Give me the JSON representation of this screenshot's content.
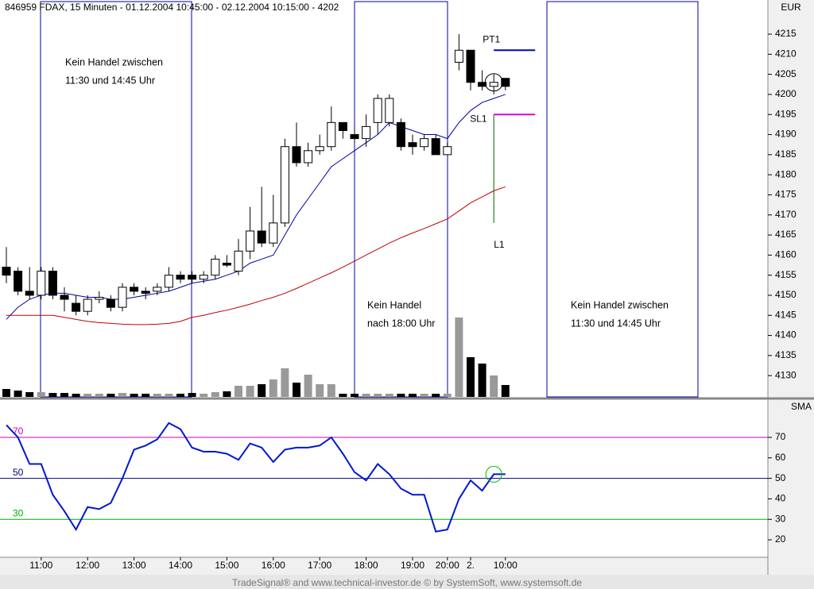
{
  "header": "846959  FDAX, 15 Minuten - 01.12.2004 10:45:00 - 02.12.2004 10:15:00 - 4202",
  "footer": "TradeSignal® and www.technical-investor.de © by SystemSoft, www.systemsoft.de",
  "chart_data": [
    {
      "type": "candlestick",
      "unit": "EUR",
      "categories": [
        null,
        null,
        null,
        "11:00",
        null,
        null,
        null,
        "12:00",
        null,
        null,
        null,
        "13:00",
        null,
        null,
        null,
        "14:00",
        null,
        null,
        null,
        "15:00",
        null,
        null,
        null,
        "16:00",
        null,
        null,
        null,
        "17:00",
        null,
        null,
        null,
        "18:00",
        null,
        null,
        null,
        "19:00",
        null,
        null,
        "20:00",
        null,
        "2.",
        null,
        null,
        "10:00"
      ],
      "open": [
        4157,
        4156,
        4151,
        4150,
        4156,
        4150,
        4148,
        4146,
        4149,
        4149,
        4147,
        4152,
        4151,
        4151,
        4152,
        4155,
        4155,
        4154,
        4155,
        4158,
        4156,
        4161,
        4166,
        4163,
        4168,
        4187,
        4183,
        4186,
        4187,
        4193,
        4190,
        4189,
        4193,
        4193,
        4193,
        4188,
        4187,
        4189,
        4185,
        4208,
        4211,
        4203,
        4202,
        4204
      ],
      "high": [
        4162,
        4157,
        4157,
        4157,
        4157,
        4152,
        4150,
        4150,
        4151,
        4150,
        4153,
        4153,
        4152,
        4153,
        4157,
        4156,
        4156,
        4156,
        4160,
        4160,
        4164,
        4172,
        4177,
        4175,
        4189,
        4193,
        4188,
        4190,
        4197,
        4193,
        4192,
        4195,
        4200,
        4200,
        4194,
        4190,
        4190,
        4190,
        4188,
        4215,
        4211,
        4206,
        4205,
        4204
      ],
      "low": [
        4153,
        4150,
        4149,
        4149,
        4149,
        4146,
        4145,
        4145,
        4148,
        4146,
        4146,
        4150,
        4149,
        4150,
        4151,
        4153,
        4153,
        4153,
        4154,
        4157,
        4155,
        4159,
        4162,
        4162,
        4167,
        4182,
        4182,
        4185,
        4186,
        4189,
        4188,
        4187,
        4190,
        4192,
        4186,
        4185,
        4186,
        4185,
        4185,
        4206,
        4201,
        4201,
        4200,
        4201
      ],
      "close": [
        4155,
        4151,
        4150,
        4156,
        4150,
        4149,
        4146,
        4149,
        4149.5,
        4147,
        4152,
        4151,
        4150.5,
        4152,
        4155,
        4154,
        4154,
        4155,
        4159,
        4157.5,
        4161,
        4166,
        4163,
        4168,
        4187,
        4183,
        4186,
        4187,
        4193,
        4191,
        4189,
        4192,
        4199,
        4199,
        4187,
        4187,
        4189,
        4185,
        4187,
        4211,
        4203,
        4202,
        4203,
        4202
      ],
      "volume": [
        10,
        8,
        6,
        6,
        5,
        5,
        4,
        4,
        4,
        4,
        5,
        4,
        4,
        4,
        4,
        4,
        5,
        4,
        6,
        7,
        14,
        14,
        16,
        22,
        36,
        18,
        28,
        16,
        16,
        4,
        4,
        4,
        4,
        4,
        4,
        4,
        4,
        4,
        4,
        100,
        50,
        42,
        27,
        15
      ],
      "series": [
        {
          "color": "#0000a0",
          "values": [
            4144,
            4147,
            4149,
            4150,
            4150.5,
            4150.5,
            4150,
            4149.5,
            4149.5,
            4149,
            4149,
            4149.5,
            4150,
            4150.5,
            4151,
            4152,
            4153,
            4153.5,
            4154,
            4155,
            4156,
            4158,
            4159,
            4160,
            4165,
            4170,
            4174,
            4178,
            4182,
            4184,
            4186,
            4188,
            4190,
            4193,
            4192,
            4191,
            4190,
            4190,
            4189,
            4193,
            4196,
            4198,
            4199,
            4200
          ]
        },
        {
          "color": "#c00000",
          "values": [
            4145,
            4145,
            4145,
            4145,
            4145,
            4144.5,
            4144,
            4143.5,
            4143.2,
            4143,
            4142.8,
            4142.7,
            4142.7,
            4142.8,
            4143,
            4143.5,
            4144.5,
            4145,
            4145.7,
            4146.3,
            4147,
            4147.8,
            4148.7,
            4149.5,
            4150.5,
            4151.7,
            4153,
            4154.3,
            4155.6,
            4157,
            4158.5,
            4160,
            4161.5,
            4163,
            4164.3,
            4165.5,
            4166.6,
            4167.8,
            4169,
            4171,
            4173,
            4174.5,
            4176,
            4177
          ]
        }
      ],
      "levels": [
        {
          "name": "PT1",
          "value": 4211,
          "color": "#0000c0"
        },
        {
          "name": "SL1",
          "value": 4195,
          "color": "#e000e0"
        },
        {
          "name": "L1",
          "value": 4168,
          "color": "#006000"
        }
      ],
      "annotations": [
        [
          "Kein Handel zwischen",
          "11:30 und 14:45 Uhr"
        ],
        [
          "Kein Handel",
          "nach 18:00 Uhr"
        ],
        [
          "Kein Handel zwischen",
          "11:30 und 14:45 Uhr"
        ]
      ],
      "ylim": [
        4124.7,
        4223.5
      ],
      "yticks": [
        4130,
        4135,
        4140,
        4145,
        4150,
        4155,
        4160,
        4165,
        4170,
        4175,
        4180,
        4185,
        4190,
        4195,
        4200,
        4205,
        4210,
        4215
      ]
    },
    {
      "type": "line",
      "title": "SMA",
      "series": [
        {
          "color": "#0018d0",
          "values": [
            76,
            70,
            57,
            57,
            42,
            34,
            25,
            36,
            35,
            38,
            50,
            64,
            66,
            69,
            77,
            74,
            65,
            63,
            63,
            62,
            59,
            67,
            65,
            58,
            64,
            65,
            65,
            66,
            70,
            62,
            53,
            49,
            57,
            52,
            45,
            42,
            42,
            24,
            25,
            40,
            49,
            44,
            52,
            52
          ]
        }
      ],
      "hlines": [
        {
          "value": 70,
          "color": "#c000c0"
        },
        {
          "value": 50,
          "color": "#000080"
        },
        {
          "value": 30,
          "color": "#00b000"
        }
      ],
      "ylim": [
        11.5,
        87.8
      ],
      "yticks": [
        20,
        30,
        40,
        50,
        60,
        70
      ]
    }
  ]
}
